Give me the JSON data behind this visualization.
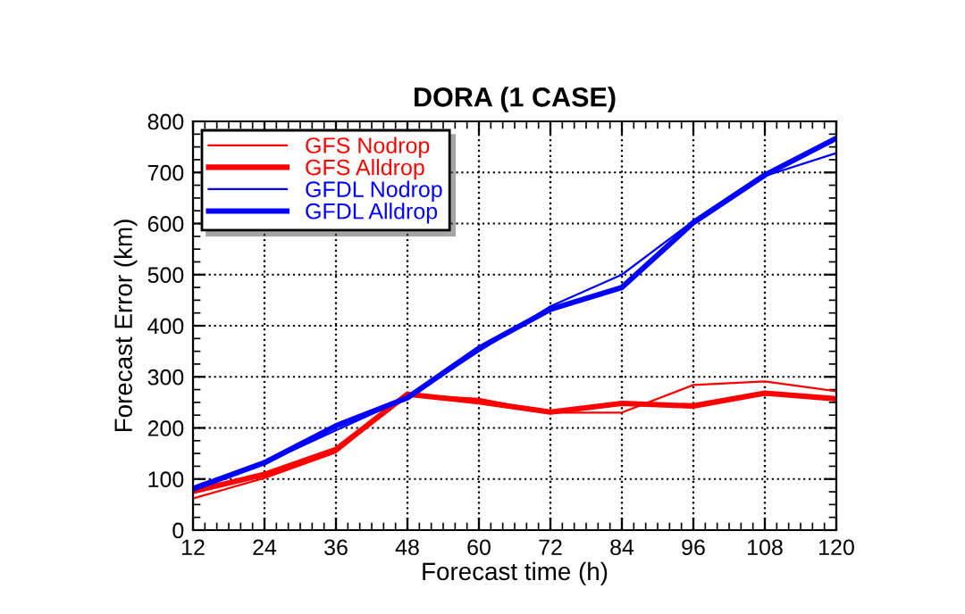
{
  "chart_data": {
    "type": "line",
    "title": "DORA (1 CASE)",
    "xlabel": "Forecast time (h)",
    "ylabel": "Forecast Error (km)",
    "x": [
      12,
      24,
      36,
      48,
      60,
      72,
      84,
      96,
      108,
      120
    ],
    "series": [
      {
        "name": "GFS Nodrop",
        "color": "#ff0000",
        "values": [
          62,
          102,
          152,
          265,
          257,
          230,
          230,
          284,
          291,
          272
        ]
      },
      {
        "name": "GFS Alldrop",
        "color": "#ff0000",
        "values": [
          76,
          109,
          158,
          266,
          251,
          231,
          248,
          243,
          268,
          257
        ]
      },
      {
        "name": "GFDL Nodrop",
        "color": "#0000ff",
        "values": [
          78,
          131,
          195,
          259,
          350,
          438,
          500,
          605,
          693,
          738
        ]
      },
      {
        "name": "GFDL Alldrop",
        "color": "#0000ff",
        "values": [
          81,
          132,
          204,
          259,
          356,
          432,
          475,
          602,
          695,
          767
        ]
      }
    ],
    "xlim": [
      12,
      120
    ],
    "xticks": [
      12,
      24,
      36,
      48,
      60,
      72,
      84,
      96,
      108,
      120
    ],
    "ylim": [
      0,
      800
    ],
    "yticks": [
      0,
      100,
      200,
      300,
      400,
      500,
      600,
      700,
      800
    ],
    "grid": true,
    "legend": "top left",
    "line_style": "solid",
    "marker": "none"
  }
}
